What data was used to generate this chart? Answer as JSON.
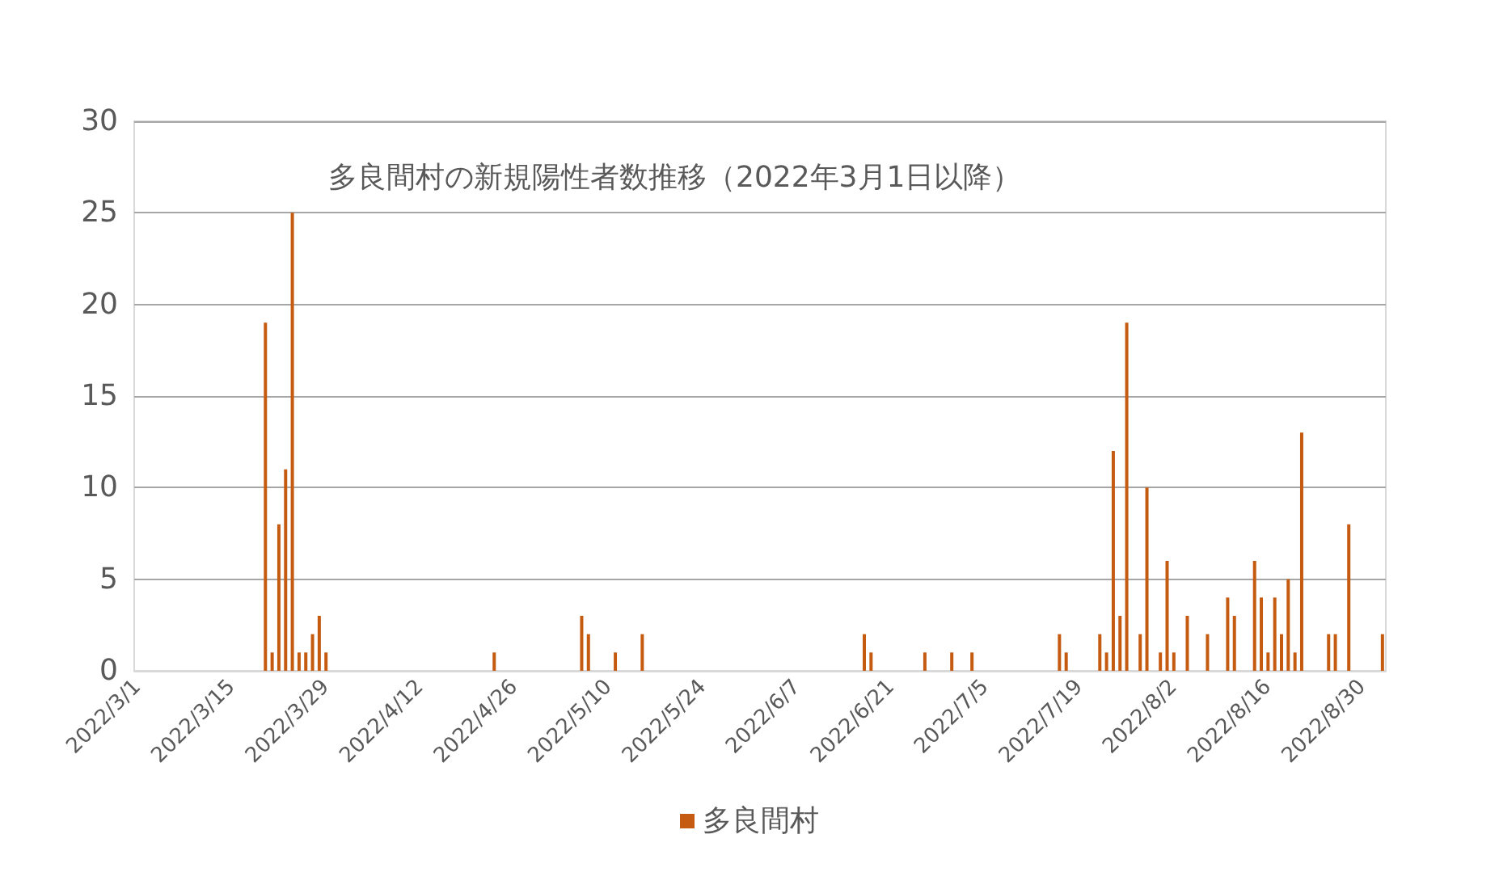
{
  "chart_data": {
    "type": "bar",
    "title": "多良間村の新規陽性者数推移（2022年3月1日以降）",
    "x": [
      "2022-03-20",
      "2022-03-21",
      "2022-03-22",
      "2022-03-23",
      "2022-03-24",
      "2022-03-25",
      "2022-03-26",
      "2022-03-27",
      "2022-03-28",
      "2022-03-29",
      "2022-04-23",
      "2022-05-06",
      "2022-05-07",
      "2022-05-11",
      "2022-05-15",
      "2022-06-17",
      "2022-06-18",
      "2022-06-26",
      "2022-06-30",
      "2022-07-03",
      "2022-07-16",
      "2022-07-17",
      "2022-07-22",
      "2022-07-23",
      "2022-07-24",
      "2022-07-25",
      "2022-07-26",
      "2022-07-28",
      "2022-07-29",
      "2022-07-31",
      "2022-08-01",
      "2022-08-02",
      "2022-08-04",
      "2022-08-07",
      "2022-08-10",
      "2022-08-11",
      "2022-08-14",
      "2022-08-15",
      "2022-08-16",
      "2022-08-17",
      "2022-08-18",
      "2022-08-19",
      "2022-08-20",
      "2022-08-21",
      "2022-08-25",
      "2022-08-26",
      "2022-08-28",
      "2022-09-02"
    ],
    "series": [
      {
        "name": "多良間村",
        "color": "#c55a11",
        "values": [
          19,
          1,
          8,
          11,
          25,
          1,
          1,
          2,
          3,
          1,
          1,
          3,
          2,
          1,
          2,
          2,
          1,
          1,
          1,
          1,
          2,
          1,
          2,
          1,
          12,
          3,
          19,
          2,
          10,
          1,
          6,
          1,
          3,
          2,
          4,
          3,
          6,
          4,
          1,
          4,
          2,
          5,
          1,
          13,
          2,
          2,
          8,
          2
        ]
      }
    ],
    "xlim": [
      "2022-02-28T12:00",
      "2022-09-02T12:00"
    ],
    "xticks": [
      {
        "value": "2022-03-01",
        "label": "2022/3/1"
      },
      {
        "value": "2022-03-15",
        "label": "2022/3/15"
      },
      {
        "value": "2022-03-29",
        "label": "2022/3/29"
      },
      {
        "value": "2022-04-12",
        "label": "2022/4/12"
      },
      {
        "value": "2022-04-26",
        "label": "2022/4/26"
      },
      {
        "value": "2022-05-10",
        "label": "2022/5/10"
      },
      {
        "value": "2022-05-24",
        "label": "2022/5/24"
      },
      {
        "value": "2022-06-07",
        "label": "2022/6/7"
      },
      {
        "value": "2022-06-21",
        "label": "2022/6/21"
      },
      {
        "value": "2022-07-05",
        "label": "2022/7/5"
      },
      {
        "value": "2022-07-19",
        "label": "2022/7/19"
      },
      {
        "value": "2022-08-02",
        "label": "2022/8/2"
      },
      {
        "value": "2022-08-16",
        "label": "2022/8/16"
      },
      {
        "value": "2022-08-30",
        "label": "2022/8/30"
      }
    ],
    "ylim": [
      0,
      30
    ],
    "yticks": [
      0,
      5,
      10,
      15,
      20,
      25,
      30
    ],
    "grid": "y",
    "legend": "bottom"
  }
}
